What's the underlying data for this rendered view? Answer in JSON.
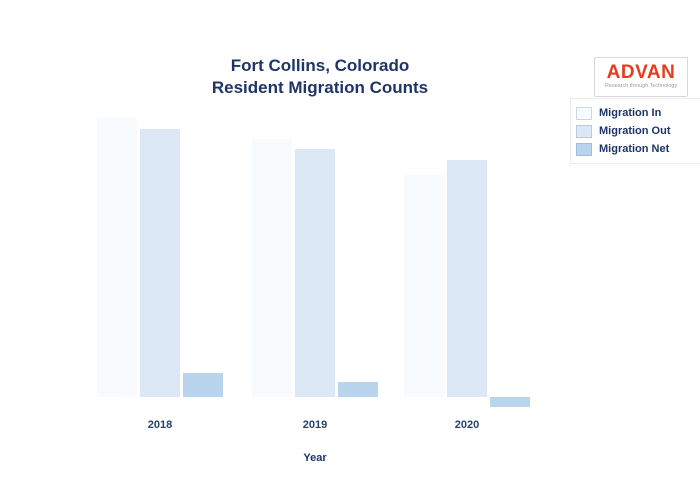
{
  "title": {
    "line1": "Fort Collins, Colorado",
    "line2": "Resident Migration Counts",
    "color": "#1e3566"
  },
  "logo": {
    "text": "ADVAN",
    "tagline": "Research through Technology",
    "text_color": "#e43c21"
  },
  "legend": {
    "items": [
      {
        "label": "Migration In",
        "color": "#f8fbfe"
      },
      {
        "label": "Migration Out",
        "color": "#dce8f6"
      },
      {
        "label": "Migration Net",
        "color": "#b9d5ee"
      }
    ]
  },
  "x_axis": {
    "title": "Year",
    "labels": [
      "2018",
      "2019",
      "2020"
    ]
  },
  "chart_data": {
    "type": "bar",
    "title": "Fort Collins, Colorado — Resident Migration Counts",
    "categories": [
      "2018",
      "2019",
      "2020"
    ],
    "series": [
      {
        "name": "Migration In",
        "color": "#f8fbfe",
        "values": [
          27900,
          25800,
          22200
        ]
      },
      {
        "name": "Migration Out",
        "color": "#dce8f6",
        "values": [
          26800,
          24800,
          23700
        ]
      },
      {
        "name": "Migration Net",
        "color": "#b9d5ee",
        "values": [
          2400,
          1500,
          -1000
        ]
      }
    ],
    "xlabel": "Year",
    "ylabel": "",
    "y_axis_tick_labels_visible": false,
    "grid": false,
    "legend_position": "upper right",
    "note": "No y-axis scale is shown in the chart; values are estimated in relative units from bar heights (1 unit = 0.01 px)."
  }
}
